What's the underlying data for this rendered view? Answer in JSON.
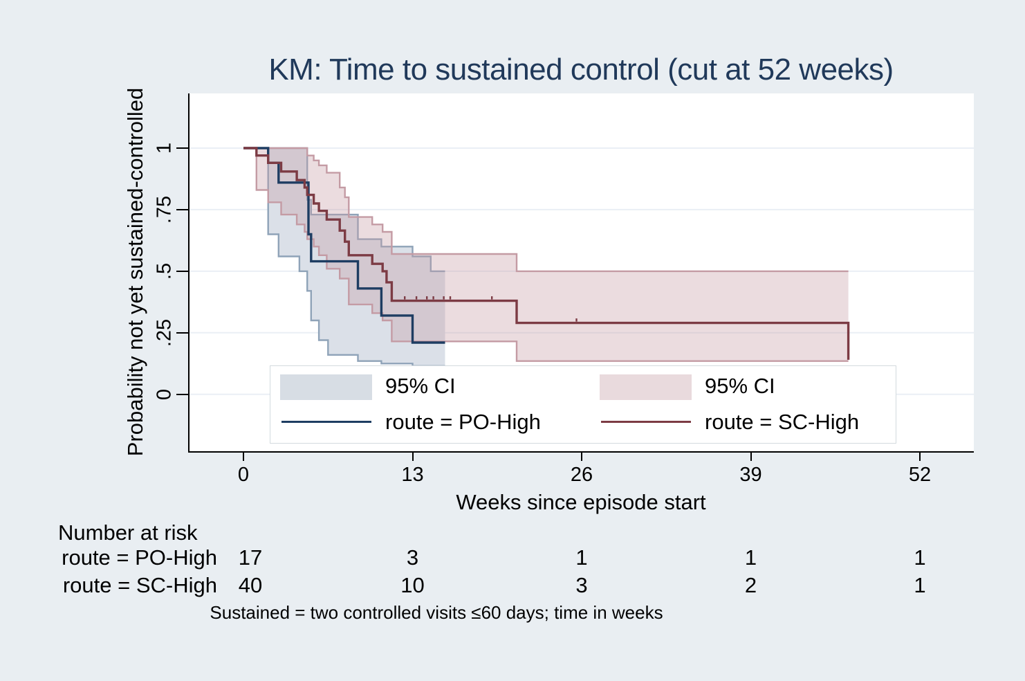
{
  "legend": {
    "ci_po_label": "95% CI",
    "ci_sc_label": "95% CI",
    "po_label": "route = PO-High",
    "sc_label": "route = SC-High"
  },
  "risk_table": {
    "heading": "Number at risk",
    "rows": [
      {
        "label": "route = PO-High",
        "values": [
          "17",
          "3",
          "1",
          "1",
          "1"
        ]
      },
      {
        "label": "route = SC-High",
        "values": [
          "40",
          "10",
          "3",
          "2",
          "1"
        ]
      }
    ]
  },
  "caption": "Sustained = two controlled visits ≤60 days; time in weeks",
  "colors": {
    "background": "#e9eef2",
    "plot_background": "#ffffff",
    "gridline": "#eaeff5",
    "axis": "#000000",
    "title_text": "#20395a",
    "po_line": "#1e3d62",
    "po_band_fill": "#dbe0e8",
    "po_band_edge": "#8fa3b8",
    "po_legend_swatch": "#d7dde4",
    "sc_line": "#7c3b44",
    "sc_band_fill": "rgba(197,155,164,0.35)",
    "sc_band_edge": "#c49ba4",
    "sc_legend_swatch": "#e9dadd"
  },
  "chart_data": {
    "type": "line",
    "subtype": "kaplan-meier-step",
    "title": "KM: Time to sustained control (cut at 52 weeks)",
    "xlabel": "Weeks since episode start",
    "ylabel": "Probability not yet sustained-controlled",
    "xlim": [
      0,
      52
    ],
    "ylim": [
      0,
      1
    ],
    "grid": "horizontal",
    "legend_position": "inside-bottom",
    "xticks": [
      {
        "label": "0",
        "v": 0
      },
      {
        "label": "13",
        "v": 13
      },
      {
        "label": "26",
        "v": 26
      },
      {
        "label": "39",
        "v": 39
      },
      {
        "label": "52",
        "v": 52
      }
    ],
    "yticks": [
      {
        "label": "1",
        "v": 1
      },
      {
        "label": ".75",
        "v": 0.75
      },
      {
        "label": ".5",
        "v": 0.5
      },
      {
        "label": ".25",
        "v": 0.25
      },
      {
        "label": "0",
        "v": 0
      }
    ],
    "series": [
      {
        "name": "route = PO-High",
        "color": "#1e3d62",
        "band_fill": "#dbe0e8",
        "band_edge": "#8fa3b8",
        "steps": {
          "t": [
            0,
            1.9,
            2.7,
            5.0,
            5.2,
            8.8,
            10.6,
            13.0
          ],
          "p": [
            1,
            0.94,
            0.86,
            0.65,
            0.54,
            0.43,
            0.32,
            0.21
          ]
        },
        "end_t": 15.5,
        "end_drop_to": null,
        "ci_upper": {
          "t": [
            0,
            4.9,
            5.2,
            8.8,
            10.6,
            13.0,
            14.4
          ],
          "p": [
            1,
            0.79,
            0.73,
            0.63,
            0.6,
            0.56,
            0.5
          ]
        },
        "ci_lower": {
          "t": [
            1.9,
            2.7,
            4.3,
            4.9,
            5.2,
            5.8,
            6.5,
            8.8,
            10.6,
            13.0
          ],
          "p": [
            0.65,
            0.56,
            0.5,
            0.42,
            0.3,
            0.22,
            0.16,
            0.135,
            0.125,
            0.115
          ]
        },
        "censor_ticks": []
      },
      {
        "name": "route = SC-High",
        "color": "#7c3b44",
        "band_fill": "rgba(197,155,164,0.35)",
        "band_edge": "#c49ba4",
        "steps": {
          "t": [
            0,
            1.0,
            1.9,
            2.9,
            4.1,
            4.7,
            4.9,
            5.4,
            5.8,
            6.4,
            7.4,
            7.8,
            8.1,
            9.9,
            10.7,
            11.0,
            11.4,
            21.0
          ],
          "p": [
            1,
            0.97,
            0.94,
            0.905,
            0.87,
            0.84,
            0.81,
            0.775,
            0.745,
            0.71,
            0.665,
            0.62,
            0.565,
            0.53,
            0.5,
            0.455,
            0.38,
            0.29
          ]
        },
        "end_t": 46.5,
        "end_drop_to": 0.14,
        "ci_upper": {
          "t": [
            0,
            4.9,
            5.4,
            5.8,
            6.4,
            7.4,
            7.8,
            8.1,
            9.9,
            10.7,
            11.4,
            21.0
          ],
          "p": [
            1,
            0.97,
            0.95,
            0.93,
            0.9,
            0.84,
            0.8,
            0.72,
            0.69,
            0.66,
            0.57,
            0.5
          ]
        },
        "ci_lower": {
          "t": [
            1.0,
            1.9,
            2.9,
            4.1,
            4.7,
            4.9,
            5.4,
            5.8,
            6.4,
            7.4,
            8.1,
            9.9,
            10.7,
            11.4,
            21.0
          ],
          "p": [
            0.83,
            0.78,
            0.73,
            0.69,
            0.66,
            0.63,
            0.6,
            0.565,
            0.51,
            0.47,
            0.365,
            0.33,
            0.3,
            0.215,
            0.135
          ]
        },
        "censor_ticks": [
          12.4,
          13.3,
          14.1,
          14.6,
          15.4,
          15.9,
          19.1,
          25.6
        ]
      }
    ],
    "risk_table": {
      "heading": "Number at risk",
      "times": [
        0,
        13,
        26,
        39,
        52
      ],
      "rows": [
        {
          "name": "route = PO-High",
          "counts": [
            17,
            3,
            1,
            1,
            1
          ]
        },
        {
          "name": "route = SC-High",
          "counts": [
            40,
            10,
            3,
            2,
            1
          ]
        }
      ]
    }
  }
}
